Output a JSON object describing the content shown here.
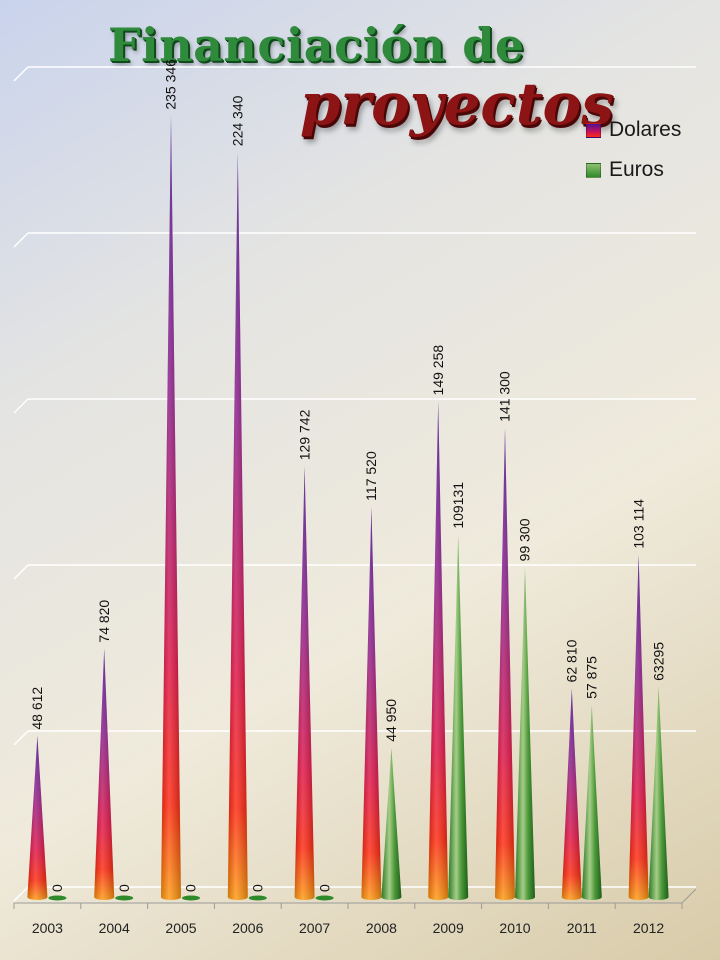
{
  "title": {
    "line1": "Financiación de",
    "line2": "proyectos"
  },
  "legend": {
    "dolares_label": "Dolares",
    "euros_label": "Euros"
  },
  "colors": {
    "dolares_top": "#4b1290",
    "dolares_mid": "#c01060",
    "dolares_bottom": "#ff7a10",
    "euros_light": "#a9cf8c",
    "euros_dark": "#1f6f1c",
    "gridline": "#ffffff"
  },
  "chart_data": {
    "type": "bar",
    "shape": "cone",
    "categories": [
      "2003",
      "2004",
      "2005",
      "2006",
      "2007",
      "2008",
      "2009",
      "2010",
      "2011",
      "2012"
    ],
    "series": [
      {
        "name": "Dolares",
        "values": [
          48612,
          74820,
          235346,
          224340,
          129742,
          117520,
          149258,
          141300,
          62810,
          103114
        ],
        "labels": [
          "48 612",
          "74 820",
          "235 346",
          "224 340",
          "129 742",
          "117 520",
          "149 258",
          "141 300",
          "62 810",
          "103 114"
        ]
      },
      {
        "name": "Euros",
        "values": [
          0,
          0,
          0,
          0,
          0,
          44950,
          109131,
          99300,
          57875,
          63295
        ],
        "labels": [
          "0",
          "0",
          "0",
          "0",
          "0",
          "44 950",
          "109131",
          "99 300",
          "57 875",
          "63295"
        ]
      }
    ],
    "ylim": [
      0,
      250000
    ],
    "grid": true,
    "legend_position": "top-right",
    "ytick_labels_shown": false
  }
}
